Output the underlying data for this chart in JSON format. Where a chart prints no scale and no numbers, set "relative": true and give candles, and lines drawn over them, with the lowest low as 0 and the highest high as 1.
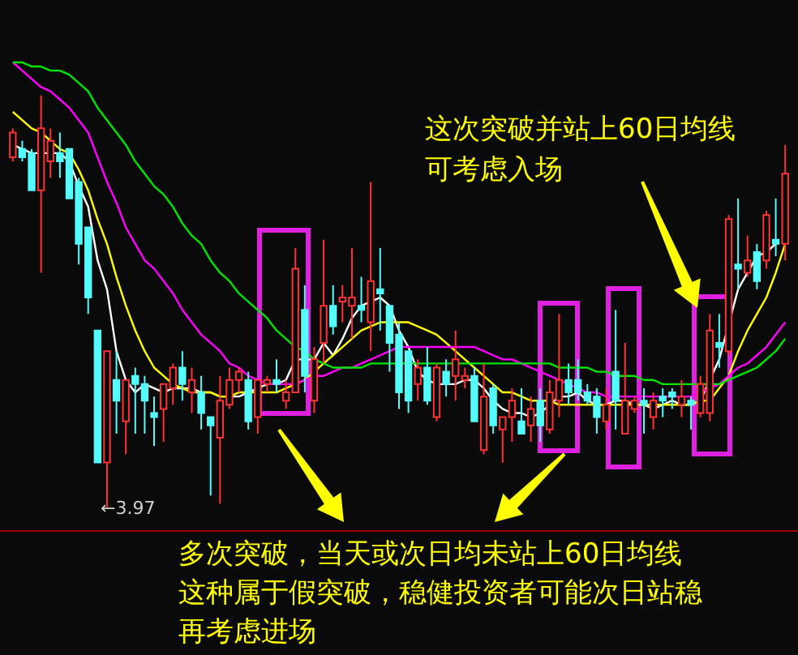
{
  "chart_data": {
    "type": "candlestick",
    "relative": true,
    "categories": [
      null,
      null,
      null,
      null,
      null,
      null,
      null,
      null,
      null,
      null,
      null,
      null,
      null,
      null,
      null,
      null,
      null,
      null,
      null,
      null,
      null,
      null,
      null,
      null,
      null,
      null,
      null,
      null,
      null,
      null,
      null,
      null,
      null,
      null,
      null,
      null,
      null,
      null,
      null,
      null,
      null,
      null,
      null,
      null,
      null,
      null,
      null,
      null,
      null,
      null,
      null,
      null,
      null,
      null,
      null,
      null,
      null,
      null,
      null,
      null,
      null,
      null,
      null,
      null,
      null,
      null,
      null,
      null,
      null,
      null,
      null,
      null,
      null,
      null,
      null,
      null,
      null,
      null,
      null,
      null,
      null,
      null,
      null
    ],
    "ohlc": [
      [
        0.85,
        0.92,
        0.84,
        0.91
      ],
      [
        0.87,
        0.89,
        0.84,
        0.85
      ],
      [
        0.86,
        0.87,
        0.77,
        0.77
      ],
      [
        0.77,
        1.0,
        0.57,
        0.92
      ],
      [
        0.84,
        0.92,
        0.8,
        0.89
      ],
      [
        0.86,
        0.91,
        0.8,
        0.84
      ],
      [
        0.87,
        0.87,
        0.75,
        0.75
      ],
      [
        0.79,
        0.8,
        0.59,
        0.64
      ],
      [
        0.68,
        0.68,
        0.47,
        0.51
      ],
      [
        0.43,
        0.43,
        0.11,
        0.11
      ],
      [
        0.11,
        0.38,
        0,
        0.38
      ],
      [
        0.31,
        0.38,
        0.18,
        0.26
      ],
      [
        0.21,
        0.31,
        0.13,
        0.31
      ],
      [
        0.32,
        0.34,
        0.18,
        0.3
      ],
      [
        0.3,
        0.32,
        0.18,
        0.26
      ],
      [
        0.23,
        0.27,
        0.15,
        0.22
      ],
      [
        0.24,
        0.3,
        0.16,
        0.3
      ],
      [
        0.29,
        0.35,
        0.25,
        0.34
      ],
      [
        0.34,
        0.38,
        0.26,
        0.3
      ],
      [
        0.28,
        0.34,
        0.23,
        0.31
      ],
      [
        0.28,
        0.32,
        0.19,
        0.23
      ],
      [
        0.22,
        0.22,
        0.03,
        0.2
      ],
      [
        0.17,
        0.32,
        0.01,
        0.26
      ],
      [
        0.25,
        0.34,
        0.24,
        0.31
      ],
      [
        0.31,
        0.34,
        0.28,
        0.33
      ],
      [
        0.31,
        0.33,
        0.19,
        0.21
      ],
      [
        0.22,
        0.31,
        0.18,
        0.31
      ],
      [
        0.3,
        0.32,
        0.28,
        0.31
      ],
      [
        0.31,
        0.36,
        0.28,
        0.3
      ],
      [
        0.26,
        0.31,
        0.24,
        0.28
      ],
      [
        0.28,
        0.63,
        0.28,
        0.58
      ],
      [
        0.48,
        0.54,
        0.28,
        0.32
      ],
      [
        0.26,
        0.39,
        0.23,
        0.36
      ],
      [
        0.4,
        0.65,
        0.35,
        0.49
      ],
      [
        0.49,
        0.54,
        0.42,
        0.44
      ],
      [
        0.5,
        0.54,
        0.45,
        0.51
      ],
      [
        0.49,
        0.63,
        0.41,
        0.51
      ],
      [
        0.49,
        0.56,
        0.45,
        0.48
      ],
      [
        0.45,
        0.79,
        0.38,
        0.55
      ],
      [
        0.53,
        0.63,
        0.43,
        0.52
      ],
      [
        0.49,
        0.49,
        0.33,
        0.4
      ],
      [
        0.42,
        0.45,
        0.24,
        0.28
      ],
      [
        0.38,
        0.38,
        0.23,
        0.26
      ],
      [
        0.3,
        0.36,
        0.26,
        0.34
      ],
      [
        0.34,
        0.39,
        0.25,
        0.26
      ],
      [
        0.22,
        0.35,
        0.21,
        0.34
      ],
      [
        0.33,
        0.36,
        0.27,
        0.3
      ],
      [
        0.32,
        0.43,
        0.26,
        0.36
      ],
      [
        0.31,
        0.34,
        0.29,
        0.32
      ],
      [
        0.32,
        0.34,
        0.21,
        0.21
      ],
      [
        0.14,
        0.35,
        0.13,
        0.27
      ],
      [
        0.29,
        0.3,
        0.18,
        0.2
      ],
      [
        0.19,
        0.22,
        0.11,
        0.22
      ],
      [
        0.22,
        0.29,
        0.16,
        0.26
      ],
      [
        0.21,
        0.29,
        0.18,
        0.18
      ],
      [
        0.2,
        0.27,
        0.16,
        0.24
      ],
      [
        0.26,
        0.29,
        0.16,
        0.2
      ],
      [
        0.19,
        0.31,
        0.18,
        0.28
      ],
      [
        0.26,
        0.47,
        0.22,
        0.31
      ],
      [
        0.31,
        0.35,
        0.25,
        0.28
      ],
      [
        0.31,
        0.36,
        0.26,
        0.28
      ],
      [
        0.28,
        0.3,
        0.25,
        0.26
      ],
      [
        0.27,
        0.29,
        0.18,
        0.22
      ],
      [
        0.21,
        0.29,
        0.19,
        0.25
      ],
      [
        0.33,
        0.48,
        0.19,
        0.26
      ],
      [
        0.18,
        0.4,
        0.18,
        0.26
      ],
      [
        0.24,
        0.27,
        0.23,
        0.26
      ],
      [
        0.26,
        0.29,
        0.18,
        0.25
      ],
      [
        0.22,
        0.28,
        0.19,
        0.26
      ],
      [
        0.27,
        0.29,
        0.22,
        0.26
      ],
      [
        0.28,
        0.29,
        0.24,
        0.27
      ],
      [
        0.25,
        0.31,
        0.22,
        0.27
      ],
      [
        0.26,
        0.27,
        0.19,
        0.25
      ],
      [
        0.23,
        0.32,
        0.22,
        0.3
      ],
      [
        0.23,
        0.47,
        0.21,
        0.43
      ],
      [
        0.4,
        0.47,
        0.34,
        0.39
      ],
      [
        0.38,
        0.71,
        0.37,
        0.7
      ],
      [
        0.59,
        0.75,
        0.53,
        0.58
      ],
      [
        0.57,
        0.66,
        0.56,
        0.6
      ],
      [
        0.62,
        0.64,
        0.53,
        0.55
      ],
      [
        0.6,
        0.72,
        0.58,
        0.71
      ],
      [
        0.65,
        0.75,
        0.61,
        0.64
      ],
      [
        0.64,
        0.88,
        0.6,
        0.81
      ]
    ],
    "series": [
      {
        "type": "line",
        "color": "#ffffff",
        "values": [
          0.88,
          0.87,
          0.86,
          0.86,
          0.86,
          0.86,
          0.84,
          0.78,
          0.73,
          0.6,
          0.53,
          0.38,
          0.31,
          0.28,
          0.3,
          0.29,
          0.28,
          0.29,
          0.29,
          0.29,
          0.28,
          0.28,
          0.27,
          0.27,
          0.27,
          0.28,
          0.29,
          0.3,
          0.3,
          0.31,
          0.36,
          0.36,
          0.36,
          0.4,
          0.37,
          0.41,
          0.46,
          0.49,
          0.5,
          0.51,
          0.49,
          0.43,
          0.39,
          0.33,
          0.31,
          0.3,
          0.3,
          0.3,
          0.31,
          0.31,
          0.29,
          0.26,
          0.24,
          0.23,
          0.23,
          0.22,
          0.23,
          0.25,
          0.27,
          0.27,
          0.28,
          0.26,
          0.25,
          0.25,
          0.26,
          0.26,
          0.25,
          0.25,
          0.24,
          0.25,
          0.26,
          0.25,
          0.25,
          0.26,
          null,
          0.36,
          null,
          0.53,
          0.57,
          0.61,
          0.62,
          0.64,
          null
        ]
      },
      {
        "type": "line",
        "color": "#ffff00",
        "values": [
          0.96,
          0.94,
          0.92,
          0.91,
          0.89,
          0.87,
          0.86,
          0.82,
          0.77,
          0.7,
          0.64,
          0.56,
          0.49,
          0.43,
          0.38,
          0.34,
          0.32,
          0.3,
          0.29,
          0.28,
          0.28,
          0.28,
          0.27,
          0.27,
          0.28,
          0.28,
          0.28,
          0.28,
          0.28,
          0.29,
          0.3,
          0.31,
          0.33,
          0.35,
          0.37,
          0.39,
          0.41,
          0.43,
          0.44,
          0.45,
          0.45,
          0.45,
          0.45,
          0.44,
          0.43,
          0.42,
          0.4,
          0.38,
          0.36,
          0.34,
          0.32,
          0.3,
          0.28,
          0.28,
          0.27,
          0.26,
          0.26,
          0.26,
          0.25,
          0.25,
          0.25,
          0.25,
          0.25,
          0.25,
          0.25,
          0.25,
          0.25,
          0.25,
          0.25,
          0.25,
          0.25,
          0.25,
          0.25,
          0.26,
          0.26,
          0.29,
          0.32,
          0.38,
          0.43,
          0.47,
          0.51,
          0.57,
          0.64
        ]
      },
      {
        "type": "line",
        "color": "#ff00ff",
        "values": [
          1.08,
          1.06,
          1.04,
          1.02,
          1.01,
          0.99,
          0.97,
          0.94,
          0.91,
          0.85,
          0.79,
          0.74,
          0.68,
          0.64,
          0.6,
          0.58,
          0.55,
          0.52,
          0.48,
          0.45,
          0.42,
          0.4,
          0.38,
          0.35,
          0.34,
          0.32,
          0.31,
          0.3,
          0.3,
          0.3,
          0.3,
          0.31,
          0.32,
          0.32,
          0.33,
          0.34,
          0.34,
          0.35,
          0.36,
          0.37,
          0.38,
          0.39,
          0.39,
          0.39,
          0.39,
          0.39,
          0.39,
          0.39,
          0.39,
          0.39,
          0.38,
          0.37,
          0.36,
          0.36,
          0.35,
          0.34,
          0.33,
          0.32,
          0.31,
          0.3,
          0.29,
          0.28,
          0.28,
          0.27,
          0.27,
          0.27,
          0.27,
          0.27,
          0.27,
          0.27,
          0.27,
          0.27,
          0.27,
          0.28,
          0.29,
          0.3,
          0.32,
          0.34,
          0.35,
          0.37,
          0.39,
          0.42,
          0.45
        ]
      },
      {
        "type": "line",
        "color": "#00e600",
        "values": [
          1.08,
          1.08,
          1.07,
          1.07,
          1.06,
          1.06,
          1.05,
          1.03,
          1.01,
          0.97,
          0.94,
          0.91,
          0.88,
          0.84,
          0.81,
          0.78,
          0.76,
          0.73,
          0.69,
          0.66,
          0.64,
          0.6,
          0.57,
          0.55,
          0.52,
          0.5,
          0.48,
          0.46,
          0.43,
          0.41,
          0.39,
          0.38,
          0.36,
          0.35,
          0.34,
          0.34,
          0.34,
          0.34,
          0.35,
          0.35,
          0.35,
          0.35,
          0.35,
          0.35,
          0.35,
          0.35,
          0.35,
          0.35,
          0.35,
          0.35,
          0.35,
          0.35,
          0.35,
          0.35,
          0.35,
          0.35,
          0.35,
          0.35,
          0.34,
          0.34,
          0.34,
          0.34,
          0.33,
          0.33,
          0.32,
          0.32,
          0.32,
          0.31,
          0.31,
          0.3,
          0.3,
          0.3,
          0.3,
          0.3,
          0.3,
          0.3,
          0.31,
          0.32,
          0.33,
          0.34,
          0.36,
          0.38,
          0.41
        ]
      }
    ],
    "annotations": [
      "这次突破并站上60日均线",
      "可考虑入场",
      "多次突破，当天或次日均未站上60日均线",
      "这种属于假突破，稳健投资者可能次日站稳",
      "再考虑进场",
      "←3.97"
    ]
  }
}
